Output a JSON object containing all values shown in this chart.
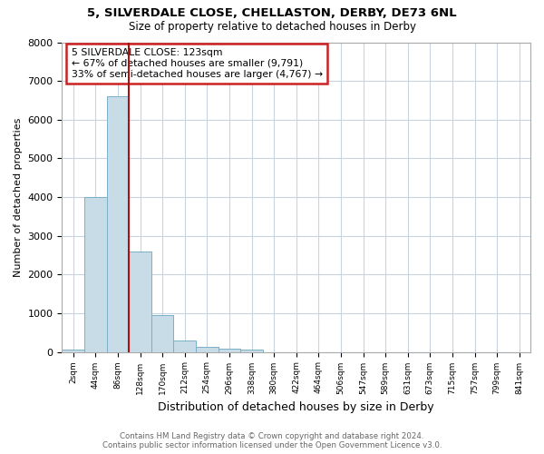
{
  "title1": "5, SILVERDALE CLOSE, CHELLASTON, DERBY, DE73 6NL",
  "title2": "Size of property relative to detached houses in Derby",
  "xlabel": "Distribution of detached houses by size in Derby",
  "ylabel": "Number of detached properties",
  "bin_labels": [
    "2sqm",
    "44sqm",
    "86sqm",
    "128sqm",
    "170sqm",
    "212sqm",
    "254sqm",
    "296sqm",
    "338sqm",
    "380sqm",
    "422sqm",
    "464sqm",
    "506sqm",
    "547sqm",
    "589sqm",
    "631sqm",
    "673sqm",
    "715sqm",
    "757sqm",
    "799sqm",
    "841sqm"
  ],
  "bar_heights": [
    50,
    4000,
    6600,
    2600,
    950,
    300,
    130,
    80,
    70,
    0,
    0,
    0,
    0,
    0,
    0,
    0,
    0,
    0,
    0,
    0,
    0
  ],
  "bar_color": "#c8dce8",
  "bar_edge_color": "#7aafc8",
  "vline_color": "#aa1111",
  "vline_pos": 2.5,
  "annotation_title": "5 SILVERDALE CLOSE: 123sqm",
  "annotation_line1": "← 67% of detached houses are smaller (9,791)",
  "annotation_line2": "33% of semi-detached houses are larger (4,767) →",
  "annotation_box_color": "#cc2222",
  "ylim": [
    0,
    8000
  ],
  "yticks": [
    0,
    1000,
    2000,
    3000,
    4000,
    5000,
    6000,
    7000,
    8000
  ],
  "footer1": "Contains HM Land Registry data © Crown copyright and database right 2024.",
  "footer2": "Contains public sector information licensed under the Open Government Licence v3.0.",
  "background_color": "#ffffff",
  "grid_color": "#c8d4e0"
}
